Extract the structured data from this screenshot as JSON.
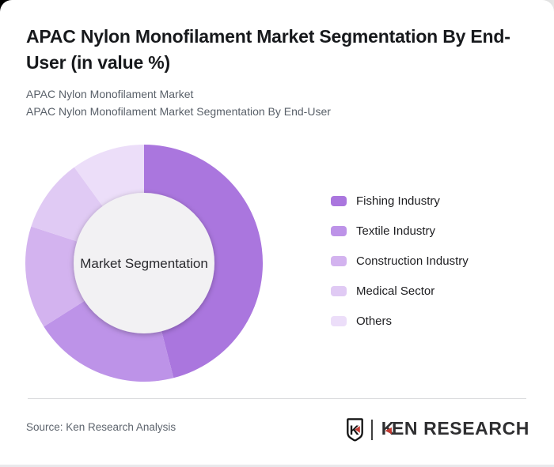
{
  "header": {
    "title": "APAC Nylon Monofilament Market Segmentation By End-User (in value %)",
    "subtitles": [
      "APAC Nylon Monofilament Market",
      "APAC Nylon Monofilament Market Segmentation By End-User"
    ]
  },
  "chart_data": {
    "type": "pie",
    "donut": true,
    "title": "APAC Nylon Monofilament Market Segmentation By End-User (in value %)",
    "units": "%",
    "center_label": "Market Segmentation",
    "categories": [
      "Fishing Industry",
      "Textile Industry",
      "Construction Industry",
      "Medical Sector",
      "Others"
    ],
    "values": [
      46,
      20,
      14,
      10,
      10
    ],
    "colors": [
      "#aa76de",
      "#bd93e8",
      "#d3b3ef",
      "#e0caf4",
      "#ecdef9"
    ],
    "start_angle_deg": 0,
    "direction": "clockwise",
    "inner_radius_ratio": 0.59,
    "inner_circle_color": "#f2f1f3",
    "legend_position": "right"
  },
  "footer": {
    "source": "Source: Ken Research Analysis",
    "logo": {
      "shield_letter": "K",
      "wordmark_k": "K",
      "wordmark_rest": "EN RESEARCH",
      "accent": "#c23b33"
    }
  }
}
